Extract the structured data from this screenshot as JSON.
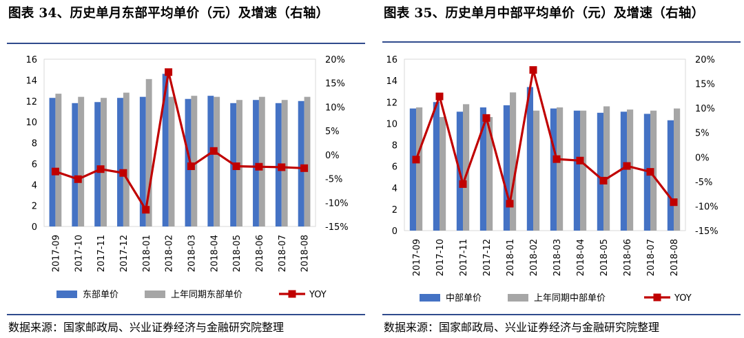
{
  "colors": {
    "bar_current": "#4472C4",
    "bar_prior": "#A6A6A6",
    "yoy_line": "#C00000",
    "rule": "#2f4a8c"
  },
  "charts": [
    {
      "title": "图表 34、历史单月东部平均单价（元）及增速（右轴）",
      "source": "数据来源：国家邮政局、兴业证券经济与金融研究院整理",
      "left_ticks": [
        "16",
        "14",
        "12",
        "10",
        "8",
        "6",
        "4",
        "2",
        "0"
      ],
      "right_ticks": [
        "20%",
        "15%",
        "10%",
        "5%",
        "0%",
        "-5%",
        "-10%",
        "-15%"
      ],
      "legend": {
        "current": "东部单价",
        "prior": "上年同期东部单价",
        "line": "YOY"
      }
    },
    {
      "title": "图表 35、历史单月中部平均单价（元）及增速（右轴）",
      "source": "数据来源：国家邮政局、兴业证券经济与金融研究院整理",
      "left_ticks": [
        "16",
        "14",
        "12",
        "10",
        "8",
        "6",
        "4",
        "2",
        "0"
      ],
      "right_ticks": [
        "20%",
        "15%",
        "10%",
        "5%",
        "0%",
        "-5%",
        "-10%",
        "-15%"
      ],
      "legend": {
        "current": "中部单价",
        "prior": "上年同期中部单价",
        "line": "YOY"
      }
    }
  ],
  "chart_data": [
    {
      "type": "bar",
      "title": "图表 34、历史单月东部平均单价（元）及增速（右轴）",
      "categories": [
        "2017-09",
        "2017-10",
        "2017-11",
        "2017-12",
        "2018-01",
        "2018-02",
        "2018-03",
        "2018-04",
        "2018-05",
        "2018-06",
        "2018-07",
        "2018-08"
      ],
      "ylim": [
        0,
        16
      ],
      "y2lim": [
        -15,
        20
      ],
      "series": [
        {
          "name": "东部单价",
          "type": "bar",
          "axis": "left",
          "values": [
            12.3,
            11.8,
            11.9,
            12.3,
            12.4,
            14.6,
            12.2,
            12.5,
            11.8,
            12.1,
            11.8,
            12.0
          ]
        },
        {
          "name": "上年同期东部单价",
          "type": "bar",
          "axis": "left",
          "values": [
            12.7,
            12.4,
            12.3,
            12.8,
            14.1,
            12.4,
            12.5,
            12.4,
            12.1,
            12.4,
            12.1,
            12.4
          ]
        },
        {
          "name": "YOY",
          "type": "line",
          "axis": "right",
          "unit": "%",
          "values": [
            -3.5,
            -5.1,
            -3.0,
            -3.8,
            -11.5,
            17.3,
            -2.4,
            0.8,
            -2.4,
            -2.5,
            -2.6,
            -2.8
          ]
        }
      ],
      "legend_position": "bottom"
    },
    {
      "type": "bar",
      "title": "图表 35、历史单月中部平均单价（元）及增速（右轴）",
      "categories": [
        "2017-09",
        "2017-10",
        "2017-11",
        "2017-12",
        "2018-01",
        "2018-02",
        "2018-03",
        "2018-04",
        "2018-05",
        "2018-06",
        "2018-07",
        "2018-08"
      ],
      "ylim": [
        0,
        16
      ],
      "y2lim": [
        -15,
        20
      ],
      "series": [
        {
          "name": "中部单价",
          "type": "bar",
          "axis": "left",
          "values": [
            11.4,
            12.0,
            11.1,
            11.5,
            11.7,
            13.4,
            11.4,
            11.2,
            11.0,
            11.1,
            10.9,
            10.3
          ]
        },
        {
          "name": "上年同期中部单价",
          "type": "bar",
          "axis": "left",
          "values": [
            11.5,
            10.6,
            11.8,
            10.6,
            12.9,
            11.2,
            11.5,
            11.2,
            11.6,
            11.3,
            11.2,
            11.4
          ]
        },
        {
          "name": "YOY",
          "type": "line",
          "axis": "right",
          "unit": "%",
          "values": [
            -0.5,
            12.4,
            -5.5,
            8.0,
            -9.5,
            17.8,
            -0.4,
            -0.7,
            -4.8,
            -1.8,
            -3.0,
            -9.2
          ]
        }
      ],
      "legend_position": "bottom"
    }
  ]
}
